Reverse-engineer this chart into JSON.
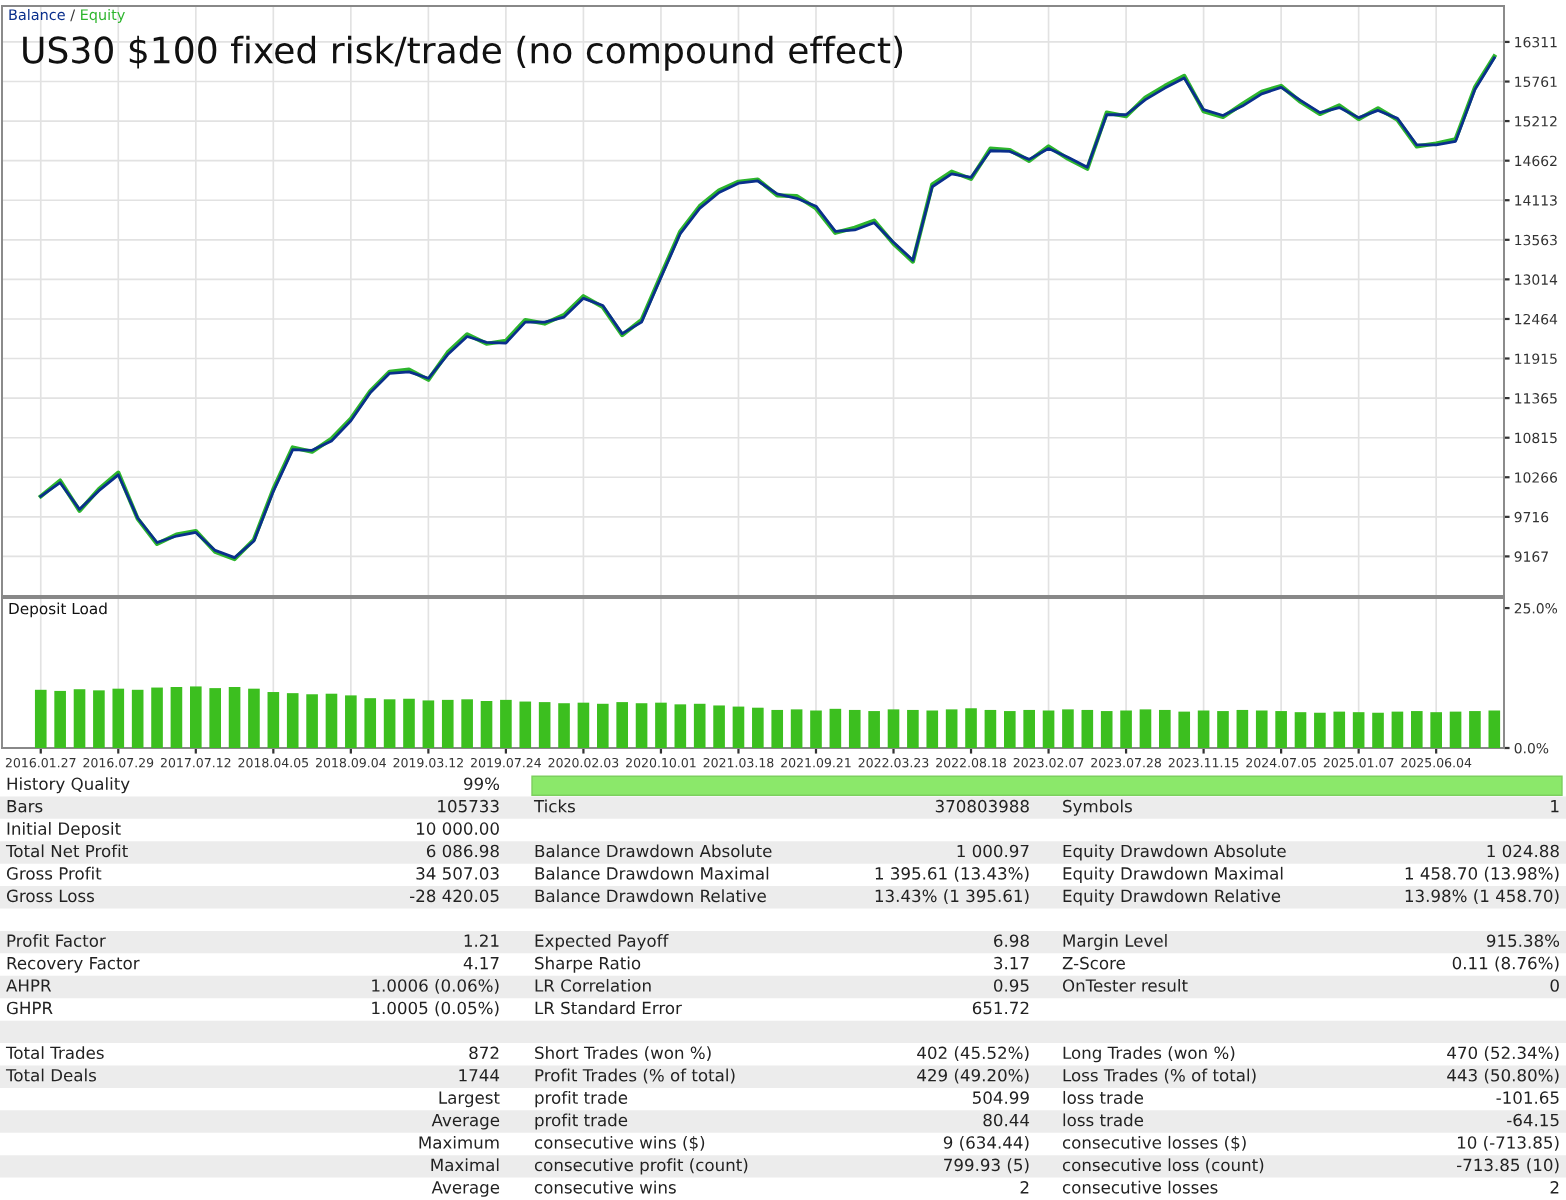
{
  "chart_data": [
    {
      "type": "line",
      "title": "US30 $100 fixed risk/trade (no compound effect)",
      "legend": "top left",
      "grid": true,
      "tick_labels": "y",
      "annotations": [
        "/"
      ],
      "categories": [
        "2016.01.27",
        null,
        null,
        null,
        "2016.07.29",
        null,
        null,
        null,
        "2017.07.12",
        null,
        null,
        null,
        "2018.04.05",
        null,
        null,
        null,
        "2018.09.04",
        null,
        null,
        null,
        "2019.03.12",
        null,
        null,
        null,
        "2019.07.24",
        null,
        null,
        null,
        "2020.02.03",
        null,
        null,
        null,
        "2020.10.01",
        null,
        null,
        null,
        "2021.03.18",
        null,
        null,
        null,
        "2021.09.21",
        null,
        null,
        null,
        "2022.03.23",
        null,
        null,
        null,
        "2022.08.18",
        null,
        null,
        null,
        "2023.02.07",
        null,
        null,
        null,
        "2023.07.28",
        null,
        null,
        null,
        "2023.11.15",
        null,
        null,
        null,
        "2024.07.05",
        null,
        null,
        null,
        "2025.01.07",
        null,
        null,
        null,
        "2025.06.04",
        null,
        null,
        null
      ],
      "ylim": [
        8617,
        16810
      ],
      "yticks": [
        9167,
        9716,
        10266,
        10815,
        11365,
        11915,
        12464,
        13014,
        13563,
        14113,
        14662,
        15212,
        15761,
        16311
      ],
      "series": [
        {
          "name": "Equity",
          "color": "#2db52d",
          "values": [
            10000,
            10220,
            9800,
            10100,
            10330,
            9690,
            9340,
            9470,
            9520,
            9230,
            9130,
            9400,
            10100,
            10680,
            10620,
            10800,
            11080,
            11460,
            11730,
            11760,
            11620,
            12000,
            12250,
            12120,
            12160,
            12450,
            12400,
            12520,
            12780,
            12630,
            12240,
            12450,
            13070,
            13680,
            14030,
            14250,
            14370,
            14400,
            14180,
            14170,
            14000,
            13660,
            13730,
            13830,
            13510,
            13260,
            14330,
            14510,
            14410,
            14830,
            14810,
            14660,
            14860,
            14690,
            14550,
            15330,
            15280,
            15540,
            15700,
            15840,
            15350,
            15270,
            15450,
            15620,
            15700,
            15480,
            15310,
            15430,
            15240,
            15390,
            15230,
            14860,
            14900,
            14960,
            15680,
            16110
          ]
        },
        {
          "name": "Balance",
          "color": "#0a2f8c",
          "values": [
            10000,
            10190,
            9820,
            10080,
            10300,
            9700,
            9360,
            9450,
            9500,
            9250,
            9150,
            9380,
            10070,
            10650,
            10640,
            10770,
            11050,
            11440,
            11710,
            11730,
            11640,
            11970,
            12220,
            12140,
            12130,
            12420,
            12420,
            12490,
            12750,
            12650,
            12260,
            12420,
            13040,
            13650,
            14000,
            14220,
            14350,
            14380,
            14200,
            14140,
            14030,
            13680,
            13700,
            13800,
            13530,
            13280,
            14300,
            14480,
            14430,
            14800,
            14790,
            14680,
            14830,
            14710,
            14570,
            15300,
            15300,
            15510,
            15670,
            15810,
            15370,
            15290,
            15420,
            15590,
            15680,
            15500,
            15330,
            15400,
            15260,
            15360,
            15250,
            14880,
            14880,
            14930,
            15650,
            16090
          ]
        }
      ]
    },
    {
      "type": "bar",
      "title": "Deposit Load",
      "grid": "x",
      "color": "#3cbf1f",
      "categories": [
        "2016.01.27",
        null,
        null,
        null,
        "2016.07.29",
        null,
        null,
        null,
        "2017.07.12",
        null,
        null,
        null,
        "2018.04.05",
        null,
        null,
        null,
        "2018.09.04",
        null,
        null,
        null,
        "2019.03.12",
        null,
        null,
        null,
        "2019.07.24",
        null,
        null,
        null,
        "2020.02.03",
        null,
        null,
        null,
        "2020.10.01",
        null,
        null,
        null,
        "2021.03.18",
        null,
        null,
        null,
        "2021.09.21",
        null,
        null,
        null,
        "2022.03.23",
        null,
        null,
        null,
        "2022.08.18",
        null,
        null,
        null,
        "2023.02.07",
        null,
        null,
        null,
        "2023.07.28",
        null,
        null,
        null,
        "2023.11.15",
        null,
        null,
        null,
        "2024.07.05",
        null,
        null,
        null,
        "2025.01.07",
        null,
        null,
        null,
        "2025.06.04",
        null,
        null,
        null
      ],
      "ylim": [
        0,
        26.8
      ],
      "yticks": [
        {
          "value": 0,
          "label": "0.0%"
        },
        {
          "value": 25,
          "label": "25.0%"
        }
      ],
      "values": [
        10.4,
        10.2,
        10.5,
        10.3,
        10.6,
        10.4,
        10.8,
        10.9,
        11.0,
        10.7,
        10.9,
        10.6,
        10.0,
        9.8,
        9.6,
        9.7,
        9.4,
        8.9,
        8.7,
        8.8,
        8.5,
        8.6,
        8.7,
        8.4,
        8.6,
        8.3,
        8.2,
        8.0,
        8.1,
        7.9,
        8.2,
        8.0,
        8.1,
        7.8,
        7.9,
        7.6,
        7.4,
        7.2,
        6.8,
        6.9,
        6.7,
        7.0,
        6.8,
        6.6,
        6.9,
        6.8,
        6.7,
        6.9,
        7.1,
        6.8,
        6.6,
        6.8,
        6.7,
        6.9,
        6.8,
        6.6,
        6.7,
        6.9,
        6.8,
        6.5,
        6.7,
        6.6,
        6.8,
        6.7,
        6.6,
        6.4,
        6.3,
        6.5,
        6.4,
        6.3,
        6.5,
        6.6,
        6.4,
        6.5,
        6.6,
        6.7
      ]
    },
    {
      "type": "other",
      "annotations": [
        "History Quality",
        "99%",
        "Bars",
        "105733",
        "Ticks",
        "370803988",
        "Symbols",
        "1",
        "Initial Deposit",
        "10 000.00",
        "Total Net Profit",
        "6 086.98",
        "Balance Drawdown Absolute",
        "1 000.97",
        "Equity Drawdown Absolute",
        "1 024.88",
        "Gross Profit",
        "34 507.03",
        "Balance Drawdown Maximal",
        "1 395.61 (13.43%)",
        "Equity Drawdown Maximal",
        "1 458.70 (13.98%)",
        "Gross Loss",
        "-28 420.05",
        "Balance Drawdown Relative",
        "13.43% (1 395.61)",
        "Equity Drawdown Relative",
        "13.98% (1 458.70)",
        "Profit Factor",
        "1.21",
        "Expected Payoff",
        "6.98",
        "Margin Level",
        "915.38%",
        "Recovery Factor",
        "4.17",
        "Sharpe Ratio",
        "3.17",
        "Z-Score",
        "0.11 (8.76%)",
        "AHPR",
        "1.0006 (0.06%)",
        "LR Correlation",
        "0.95",
        "OnTester result",
        "0",
        "GHPR",
        "1.0005 (0.05%)",
        "LR Standard Error",
        "651.72",
        "Total Trades",
        "872",
        "Short Trades (won %)",
        "402 (45.52%)",
        "Long Trades (won %)",
        "470 (52.34%)",
        "Total Deals",
        "1744",
        "Profit Trades (% of total)",
        "429 (49.20%)",
        "Loss Trades (% of total)",
        "443 (50.80%)",
        "Largest",
        "profit trade",
        "504.99",
        "loss trade",
        "-101.65",
        "Average",
        "profit trade",
        "80.44",
        "loss trade",
        "-64.15",
        "Maximum",
        "consecutive wins ($)",
        "9 (634.44)",
        "consecutive losses ($)",
        "10 (-713.85)",
        "Maximal",
        "consecutive profit (count)",
        "799.93 (5)",
        "consecutive loss (count)",
        "-713.85 (10)",
        "Average",
        "consecutive wins",
        "2",
        "consecutive losses",
        "2"
      ]
    }
  ]
}
